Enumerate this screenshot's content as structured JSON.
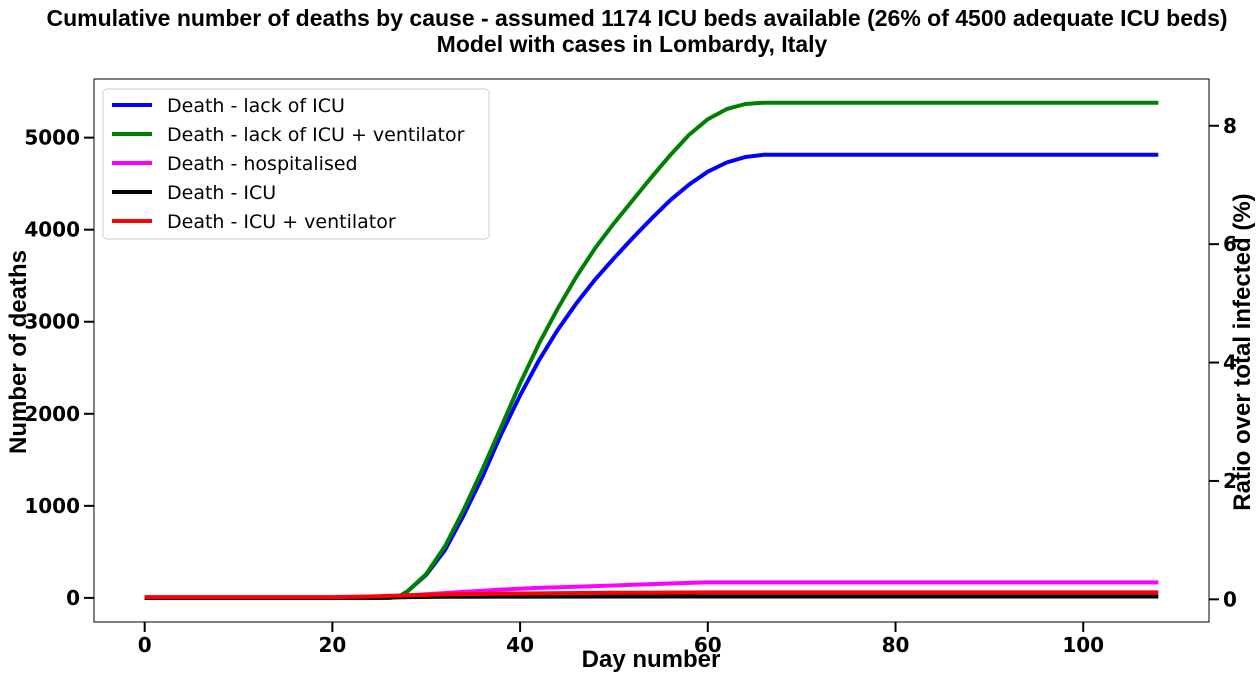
{
  "chart_data": {
    "type": "line",
    "title": "Cumulative number of deaths by cause - assumed 1174 ICU beds available (26% of 4500 adequate ICU beds)",
    "subtitle": "Model with cases in Lombardy, Italy",
    "xlabel": "Day number",
    "ylabel": "Number of deaths",
    "y2label": "Ratio over total infected (%)",
    "xlim": [
      -5.4,
      113.4
    ],
    "ylim": [
      -262,
      5637
    ],
    "y2lim": [
      -0.383,
      8.79
    ],
    "xticks": [
      0,
      20,
      40,
      60,
      80,
      100
    ],
    "yticks": [
      0,
      1000,
      2000,
      3000,
      4000,
      5000
    ],
    "y2ticks": [
      0,
      2,
      4,
      6,
      8
    ],
    "grid": false,
    "legend_position": "top-left",
    "series": [
      {
        "name": "Death - lack of ICU",
        "color": "#0000ff",
        "points": [
          [
            0,
            0
          ],
          [
            26,
            0
          ],
          [
            27,
            10
          ],
          [
            28,
            70
          ],
          [
            30,
            250
          ],
          [
            32,
            520
          ],
          [
            34,
            900
          ],
          [
            36,
            1320
          ],
          [
            38,
            1780
          ],
          [
            40,
            2200
          ],
          [
            42,
            2580
          ],
          [
            44,
            2910
          ],
          [
            46,
            3200
          ],
          [
            48,
            3460
          ],
          [
            50,
            3690
          ],
          [
            52,
            3910
          ],
          [
            54,
            4120
          ],
          [
            56,
            4320
          ],
          [
            58,
            4490
          ],
          [
            60,
            4630
          ],
          [
            62,
            4730
          ],
          [
            64,
            4790
          ],
          [
            66,
            4815
          ],
          [
            108,
            4815
          ]
        ]
      },
      {
        "name": "Death - lack of ICU + ventilator",
        "color": "#008000",
        "points": [
          [
            0,
            0
          ],
          [
            26,
            0
          ],
          [
            27,
            10
          ],
          [
            28,
            70
          ],
          [
            30,
            260
          ],
          [
            32,
            560
          ],
          [
            34,
            960
          ],
          [
            36,
            1400
          ],
          [
            38,
            1860
          ],
          [
            40,
            2330
          ],
          [
            42,
            2760
          ],
          [
            44,
            3140
          ],
          [
            46,
            3490
          ],
          [
            48,
            3800
          ],
          [
            50,
            4070
          ],
          [
            52,
            4320
          ],
          [
            54,
            4570
          ],
          [
            56,
            4810
          ],
          [
            58,
            5030
          ],
          [
            60,
            5200
          ],
          [
            62,
            5310
          ],
          [
            64,
            5365
          ],
          [
            66,
            5380
          ],
          [
            108,
            5380
          ]
        ]
      },
      {
        "name": "Death - hospitalised",
        "color": "#ff00ff",
        "points": [
          [
            0,
            0
          ],
          [
            24,
            0
          ],
          [
            26,
            10
          ],
          [
            28,
            25
          ],
          [
            30,
            40
          ],
          [
            34,
            65
          ],
          [
            38,
            90
          ],
          [
            42,
            108
          ],
          [
            46,
            120
          ],
          [
            50,
            135
          ],
          [
            54,
            150
          ],
          [
            58,
            163
          ],
          [
            60,
            168
          ],
          [
            108,
            168
          ]
        ]
      },
      {
        "name": "Death - ICU",
        "color": "#000000",
        "points": [
          [
            0,
            0
          ],
          [
            24,
            0
          ],
          [
            28,
            8
          ],
          [
            32,
            12
          ],
          [
            40,
            14
          ],
          [
            60,
            15
          ],
          [
            108,
            15
          ]
        ]
      },
      {
        "name": "Death - ICU + ventilator",
        "color": "#ff0000",
        "points": [
          [
            0,
            8
          ],
          [
            20,
            8
          ],
          [
            24,
            15
          ],
          [
            28,
            28
          ],
          [
            32,
            38
          ],
          [
            40,
            48
          ],
          [
            50,
            55
          ],
          [
            60,
            60
          ],
          [
            108,
            60
          ]
        ]
      }
    ]
  }
}
